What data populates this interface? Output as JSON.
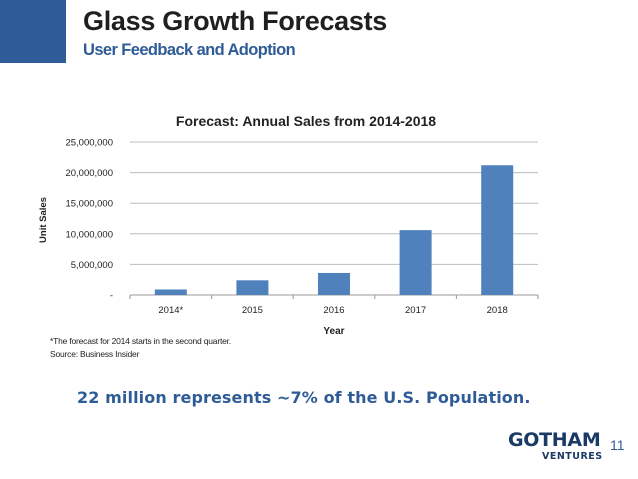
{
  "slide": {
    "title": "Glass Growth Forecasts",
    "subtitle": "User Feedback and Adoption",
    "footnote_1": "*The forecast for 2014 starts in the second quarter.",
    "footnote_2": "Source: Business Insider",
    "headline": "22 million represents ~7% of the U.S. Population.",
    "logo_main": "GOTHAM",
    "logo_sub": "VENTURES",
    "page_number": "11",
    "accent_color": "#2f5c96",
    "bar_color": "#4f81bd"
  },
  "chart_data": {
    "type": "bar",
    "title": "Forecast: Annual Sales from 2014-2018",
    "xlabel": "Year",
    "ylabel": "Unit Sales",
    "categories": [
      "2014*",
      "2015",
      "2016",
      "2017",
      "2018"
    ],
    "values": [
      900000,
      2400000,
      3600000,
      10600000,
      21200000
    ],
    "ylim": [
      0,
      25000000
    ],
    "yticks": [
      0,
      5000000,
      10000000,
      15000000,
      20000000,
      25000000
    ],
    "ytick_labels": [
      "-",
      "5,000,000",
      "10,000,000",
      "15,000,000",
      "20,000,000",
      "25,000,000"
    ],
    "grid": true,
    "legend": "none"
  }
}
